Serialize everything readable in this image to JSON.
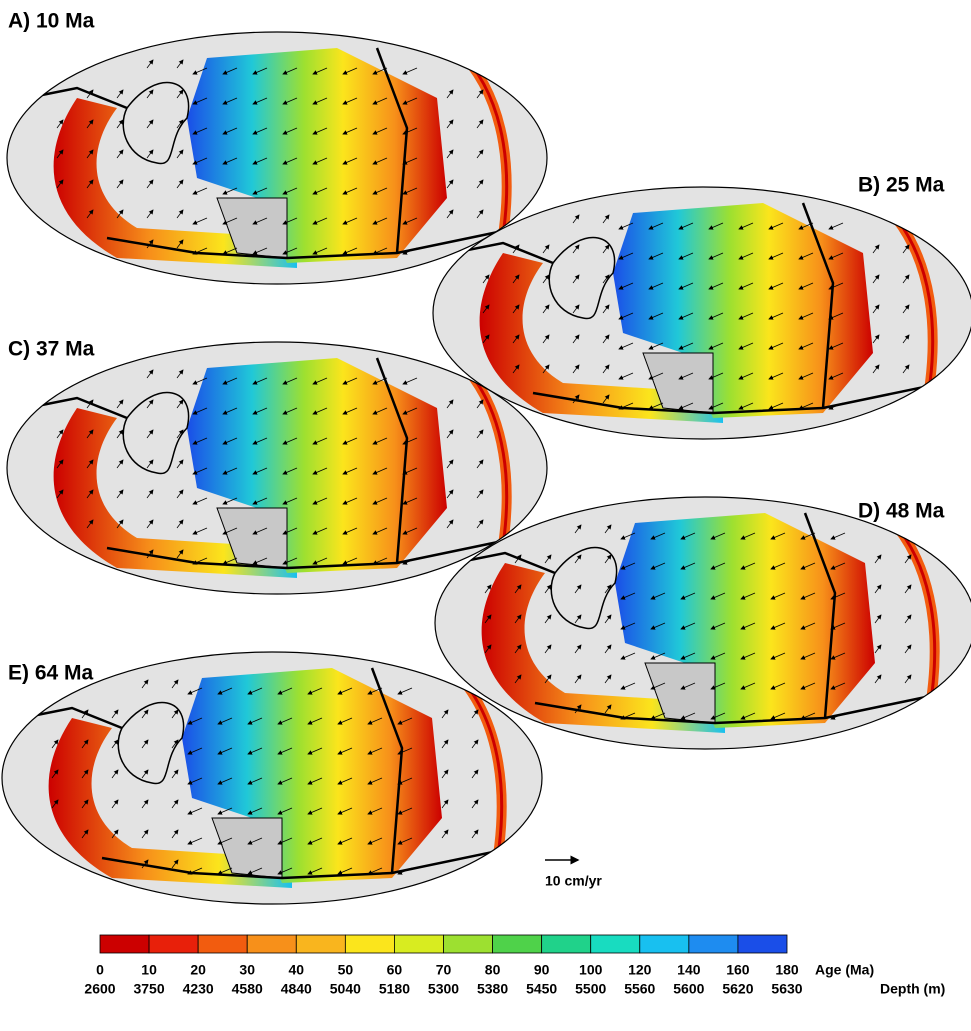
{
  "panels": [
    {
      "label": "A) 10 Ma"
    },
    {
      "label": "B) 25 Ma"
    },
    {
      "label": "C) 37 Ma"
    },
    {
      "label": "D) 48 Ma"
    },
    {
      "label": "E) 64 Ma"
    }
  ],
  "scale_arrow": {
    "label": "10 cm/yr"
  },
  "colorbar": {
    "age_title": "Age (Ma)",
    "depth_title": "Depth (m)",
    "ages": [
      0,
      10,
      20,
      30,
      40,
      50,
      60,
      70,
      80,
      90,
      100,
      120,
      140,
      160,
      180
    ],
    "depths": [
      2600,
      3750,
      4230,
      4580,
      4840,
      5040,
      5180,
      5300,
      5380,
      5450,
      5500,
      5560,
      5600,
      5620,
      5630
    ],
    "colors": [
      "#cc0000",
      "#e8200a",
      "#f25c0f",
      "#f7901a",
      "#f9b51e",
      "#fbe51c",
      "#d8ec20",
      "#9de030",
      "#4fd24a",
      "#20d28a",
      "#18dcc0",
      "#18c0f0",
      "#1e8cf0",
      "#1a4ee8"
    ]
  }
}
